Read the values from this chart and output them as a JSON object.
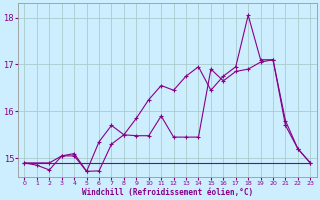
{
  "background_color": "#cceeff",
  "grid_color": "#aacccc",
  "line_color": "#880088",
  "xlabel": "Windchill (Refroidissement éolien,°C)",
  "xlim": [
    -0.5,
    23.5
  ],
  "ylim": [
    14.6,
    18.3
  ],
  "yticks": [
    15,
    16,
    17,
    18
  ],
  "xticks": [
    0,
    1,
    2,
    3,
    4,
    5,
    6,
    7,
    8,
    9,
    10,
    11,
    12,
    13,
    14,
    15,
    16,
    17,
    18,
    19,
    20,
    21,
    22,
    23
  ],
  "line1_x": [
    0,
    1,
    2,
    3,
    4,
    5,
    6,
    7,
    8,
    9,
    10,
    11,
    12,
    13,
    14,
    15,
    16,
    17,
    18,
    19,
    20,
    21,
    22,
    23
  ],
  "line1_y": [
    14.9,
    14.9,
    14.9,
    14.9,
    14.9,
    14.9,
    14.9,
    14.9,
    14.9,
    14.9,
    14.9,
    14.9,
    14.9,
    14.9,
    14.9,
    14.9,
    14.9,
    14.9,
    14.9,
    14.9,
    14.9,
    14.9,
    14.9,
    14.9
  ],
  "line2_x": [
    0,
    1,
    2,
    3,
    4,
    5,
    6,
    7,
    8,
    9,
    10,
    11,
    12,
    13,
    14,
    15,
    16,
    17,
    18,
    19,
    20,
    21,
    22,
    23
  ],
  "line2_y": [
    14.9,
    14.85,
    14.75,
    15.05,
    15.1,
    14.72,
    14.73,
    15.3,
    15.5,
    15.48,
    15.48,
    15.9,
    15.45,
    15.45,
    15.45,
    16.9,
    16.65,
    16.85,
    16.9,
    17.05,
    17.1,
    15.7,
    15.2,
    14.9
  ],
  "line3_x": [
    0,
    2,
    3,
    4,
    5,
    6,
    7,
    8,
    9,
    10,
    11,
    12,
    13,
    14,
    15,
    16,
    17,
    18,
    19,
    20,
    21,
    22,
    23
  ],
  "line3_y": [
    14.9,
    14.9,
    15.05,
    15.05,
    14.72,
    15.35,
    15.7,
    15.5,
    15.85,
    16.25,
    16.55,
    16.45,
    16.75,
    16.95,
    16.45,
    16.75,
    16.95,
    18.05,
    17.1,
    17.1,
    15.8,
    15.2,
    14.9
  ],
  "linewidth": 0.8,
  "marker": "+",
  "marker_size": 3.5
}
